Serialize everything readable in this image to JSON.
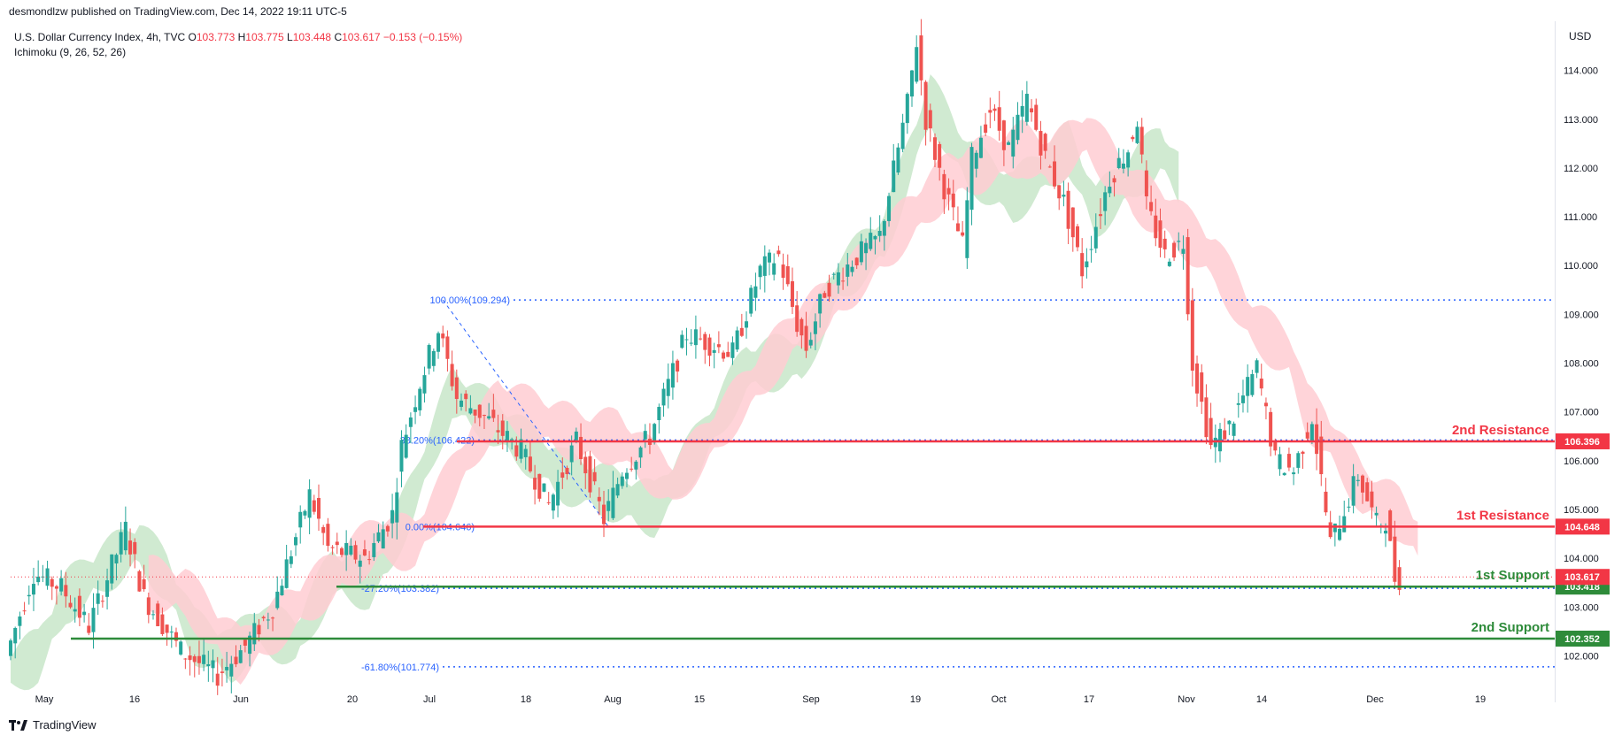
{
  "header": {
    "credit": "desmondlzw published on TradingView.com, Dec 14, 2022 19:11 UTC-5",
    "symbol": "U.S. Dollar Currency Index, 4h, TVC",
    "open_label": "O",
    "open": "103.773",
    "high_label": "H",
    "high": "103.775",
    "low_label": "L",
    "low": "103.448",
    "close_label": "C",
    "close": "103.617",
    "change": "−0.153 (−0.15%)",
    "indicator": "Ichimoku (9, 26, 52, 26)"
  },
  "currency": "USD",
  "brand": "TradingView",
  "colors": {
    "up": "#26a69a",
    "down": "#ef5350",
    "candle": "#131722",
    "resistance": "#f23645",
    "support": "#2e8b3a",
    "fib": "#2962ff",
    "cloud_green": "#c8e6c9",
    "cloud_red": "#ffcdd2"
  },
  "chart_data": {
    "type": "candlestick",
    "x_ticks": [
      "May",
      "16",
      "Jun",
      "20",
      "Jul",
      "18",
      "Aug",
      "15",
      "Sep",
      "19",
      "Oct",
      "17",
      "Nov",
      "14",
      "Dec",
      "19"
    ],
    "y_ticks": [
      "102.000",
      "103.000",
      "104.000",
      "105.000",
      "106.000",
      "107.000",
      "108.000",
      "109.000",
      "110.000",
      "111.000",
      "112.000",
      "113.000",
      "114.000"
    ],
    "ylim": [
      101.3,
      114.9
    ],
    "price_path": [
      [
        0,
        102.0
      ],
      [
        3,
        103.7
      ],
      [
        6,
        103.4
      ],
      [
        9,
        102.6
      ],
      [
        13,
        104.6
      ],
      [
        15,
        103.2
      ],
      [
        19,
        102.1
      ],
      [
        23,
        101.6
      ],
      [
        26,
        102.2
      ],
      [
        29,
        103.0
      ],
      [
        33,
        105.3
      ],
      [
        35,
        104.2
      ],
      [
        39,
        104.0
      ],
      [
        42,
        104.9
      ],
      [
        43,
        106.3
      ],
      [
        45,
        107.6
      ],
      [
        47,
        108.7
      ],
      [
        49,
        107.3
      ],
      [
        52,
        106.9
      ],
      [
        56,
        106.2
      ],
      [
        59,
        105.1
      ],
      [
        62,
        106.4
      ],
      [
        65,
        104.8
      ],
      [
        67,
        105.8
      ],
      [
        70,
        106.5
      ],
      [
        74,
        108.6
      ],
      [
        79,
        108.2
      ],
      [
        82,
        109.9
      ],
      [
        84,
        110.2
      ],
      [
        86,
        108.8
      ],
      [
        87,
        108.3
      ],
      [
        89,
        109.5
      ],
      [
        92,
        110.1
      ],
      [
        95,
        110.6
      ],
      [
        98,
        113.3
      ],
      [
        99,
        114.6
      ],
      [
        100,
        113.0
      ],
      [
        102,
        111.6
      ],
      [
        104,
        110.4
      ],
      [
        105,
        112.2
      ],
      [
        107,
        113.2
      ],
      [
        109,
        112.4
      ],
      [
        111,
        113.4
      ],
      [
        113,
        112.2
      ],
      [
        115,
        111.3
      ],
      [
        117,
        109.9
      ],
      [
        120,
        111.8
      ],
      [
        122,
        112.4
      ],
      [
        123,
        113.0
      ],
      [
        124,
        111.2
      ],
      [
        126,
        110.2
      ],
      [
        128,
        110.5
      ],
      [
        129,
        108.0
      ],
      [
        131,
        106.3
      ],
      [
        133,
        106.7
      ],
      [
        135,
        107.5
      ],
      [
        136,
        107.9
      ],
      [
        138,
        106.0
      ],
      [
        140,
        105.8
      ],
      [
        142,
        106.9
      ],
      [
        144,
        104.3
      ],
      [
        147,
        105.7
      ],
      [
        149,
        104.7
      ],
      [
        150,
        104.8
      ],
      [
        151,
        103.6
      ]
    ],
    "cloud_green": [
      [
        0,
        101.7
      ],
      [
        3,
        102.0
      ],
      [
        6,
        103.2
      ],
      [
        10,
        103.8
      ],
      [
        14,
        104.3
      ],
      [
        17,
        103.6
      ],
      [
        20,
        102.4
      ],
      [
        24,
        102.0
      ],
      [
        27,
        102.6
      ],
      [
        31,
        102.3
      ],
      [
        35,
        103.7
      ],
      [
        39,
        103.5
      ],
      [
        41,
        104.1
      ],
      [
        44,
        105.4
      ],
      [
        48,
        107.4
      ],
      [
        52,
        106.9
      ],
      [
        60,
        105.7
      ],
      [
        70,
        105.0
      ],
      [
        75,
        106.3
      ],
      [
        80,
        107.9
      ],
      [
        86,
        108.1
      ],
      [
        90,
        109.7
      ],
      [
        95,
        110.6
      ],
      [
        98,
        112.3
      ],
      [
        100,
        113.4
      ],
      [
        104,
        112.1
      ],
      [
        109,
        111.4
      ],
      [
        115,
        112.4
      ],
      [
        118,
        111.1
      ],
      [
        125,
        112.4
      ],
      [
        127,
        111.8
      ]
    ],
    "cloud_red": [
      [
        15,
        103.5
      ],
      [
        19,
        103.3
      ],
      [
        22,
        102.6
      ],
      [
        25,
        102.0
      ],
      [
        28,
        102.5
      ],
      [
        40,
        104.4
      ],
      [
        44,
        104.3
      ],
      [
        53,
        107.2
      ],
      [
        57,
        106.9
      ],
      [
        62,
        106.5
      ],
      [
        66,
        106.5
      ],
      [
        72,
        105.5
      ],
      [
        85,
        108.6
      ],
      [
        89,
        109.2
      ],
      [
        102,
        111.8
      ],
      [
        110,
        112.4
      ],
      [
        113,
        112.1
      ],
      [
        117,
        112.7
      ],
      [
        122,
        111.5
      ],
      [
        126,
        111.0
      ],
      [
        131,
        110.1
      ],
      [
        135,
        108.8
      ],
      [
        139,
        108.2
      ],
      [
        141,
        107.0
      ],
      [
        143,
        106.6
      ],
      [
        147,
        105.4
      ],
      [
        151,
        104.9
      ],
      [
        153,
        104.4
      ]
    ],
    "levels": [
      {
        "label": "2nd Resistance",
        "price": "106.396",
        "value": 106.396,
        "kind": "resistance"
      },
      {
        "label": "1st Resistance",
        "price": "104.648",
        "value": 104.648,
        "kind": "resistance"
      },
      {
        "label": "1st Support",
        "price": "103.418",
        "value": 103.418,
        "kind": "support"
      },
      {
        "label": "2nd Support",
        "price": "102.352",
        "value": 102.352,
        "kind": "support"
      }
    ],
    "last_price": {
      "value": 103.617,
      "label": "103.617"
    },
    "fib_levels": [
      {
        "label": "100.00%(109.294)",
        "value": 109.294
      },
      {
        "label": "38.20%(106.422)",
        "value": 106.422
      },
      {
        "label": "0.00%(104.646)",
        "value": 104.646
      },
      {
        "label": "-27.20%(103.382)",
        "value": 103.382
      },
      {
        "label": "-61.80%(101.774)",
        "value": 101.774
      }
    ]
  }
}
